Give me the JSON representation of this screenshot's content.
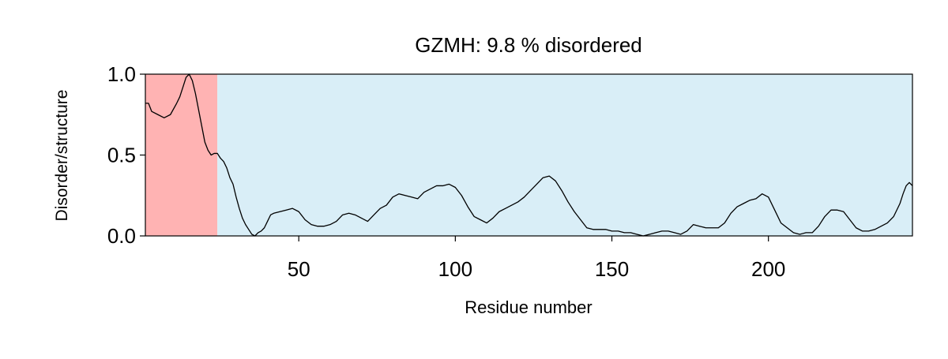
{
  "chart_data": {
    "type": "line",
    "title": "GZMH: 9.8 % disordered",
    "xlabel": "Residue number",
    "ylabel": "Disorder/structure",
    "xlim": [
      1,
      246
    ],
    "ylim": [
      0,
      1
    ],
    "x_ticks": [
      50,
      100,
      150,
      200
    ],
    "x_tick_labels": [
      "50",
      "100",
      "150",
      "200"
    ],
    "y_ticks": [
      0,
      0.5,
      1
    ],
    "y_tick_labels": [
      "0.0",
      "0.5",
      "1.0"
    ],
    "grid": false,
    "legend": "none",
    "regions": [
      {
        "kind": "disordered",
        "start": 1,
        "end": 24,
        "color": "#ffb3b3"
      },
      {
        "kind": "structured",
        "start": 24,
        "end": 246,
        "color": "#d9eef7"
      }
    ],
    "series": [
      {
        "color": "#000000",
        "points": [
          [
            1,
            0.82
          ],
          [
            2,
            0.82
          ],
          [
            3,
            0.77
          ],
          [
            5,
            0.75
          ],
          [
            7,
            0.73
          ],
          [
            9,
            0.75
          ],
          [
            11,
            0.82
          ],
          [
            12,
            0.86
          ],
          [
            13,
            0.92
          ],
          [
            14,
            0.98
          ],
          [
            15,
            1.0
          ],
          [
            16,
            0.96
          ],
          [
            17,
            0.88
          ],
          [
            18,
            0.78
          ],
          [
            19,
            0.68
          ],
          [
            20,
            0.58
          ],
          [
            21,
            0.53
          ],
          [
            22,
            0.5
          ],
          [
            23,
            0.51
          ],
          [
            24,
            0.51
          ],
          [
            25,
            0.48
          ],
          [
            26,
            0.46
          ],
          [
            27,
            0.42
          ],
          [
            28,
            0.36
          ],
          [
            29,
            0.32
          ],
          [
            30,
            0.24
          ],
          [
            31,
            0.17
          ],
          [
            32,
            0.11
          ],
          [
            33,
            0.07
          ],
          [
            34,
            0.04
          ],
          [
            35,
            0.01
          ],
          [
            36,
            0.0
          ],
          [
            37,
            0.02
          ],
          [
            38,
            0.03
          ],
          [
            39,
            0.05
          ],
          [
            40,
            0.09
          ],
          [
            41,
            0.13
          ],
          [
            42,
            0.14
          ],
          [
            44,
            0.15
          ],
          [
            46,
            0.16
          ],
          [
            48,
            0.17
          ],
          [
            50,
            0.15
          ],
          [
            52,
            0.1
          ],
          [
            54,
            0.07
          ],
          [
            56,
            0.06
          ],
          [
            58,
            0.06
          ],
          [
            60,
            0.07
          ],
          [
            62,
            0.09
          ],
          [
            64,
            0.13
          ],
          [
            66,
            0.14
          ],
          [
            68,
            0.13
          ],
          [
            70,
            0.11
          ],
          [
            72,
            0.09
          ],
          [
            74,
            0.13
          ],
          [
            76,
            0.17
          ],
          [
            78,
            0.19
          ],
          [
            80,
            0.24
          ],
          [
            82,
            0.26
          ],
          [
            84,
            0.25
          ],
          [
            86,
            0.24
          ],
          [
            88,
            0.23
          ],
          [
            90,
            0.27
          ],
          [
            92,
            0.29
          ],
          [
            94,
            0.31
          ],
          [
            96,
            0.31
          ],
          [
            98,
            0.32
          ],
          [
            100,
            0.3
          ],
          [
            102,
            0.25
          ],
          [
            104,
            0.18
          ],
          [
            106,
            0.12
          ],
          [
            108,
            0.1
          ],
          [
            110,
            0.08
          ],
          [
            112,
            0.11
          ],
          [
            114,
            0.15
          ],
          [
            116,
            0.17
          ],
          [
            118,
            0.19
          ],
          [
            120,
            0.21
          ],
          [
            122,
            0.24
          ],
          [
            124,
            0.28
          ],
          [
            126,
            0.32
          ],
          [
            128,
            0.36
          ],
          [
            130,
            0.37
          ],
          [
            132,
            0.34
          ],
          [
            134,
            0.28
          ],
          [
            136,
            0.21
          ],
          [
            138,
            0.15
          ],
          [
            140,
            0.1
          ],
          [
            142,
            0.05
          ],
          [
            144,
            0.04
          ],
          [
            146,
            0.04
          ],
          [
            148,
            0.04
          ],
          [
            150,
            0.03
          ],
          [
            152,
            0.03
          ],
          [
            154,
            0.02
          ],
          [
            156,
            0.02
          ],
          [
            158,
            0.01
          ],
          [
            160,
            0.0
          ],
          [
            162,
            0.01
          ],
          [
            164,
            0.02
          ],
          [
            166,
            0.03
          ],
          [
            168,
            0.03
          ],
          [
            170,
            0.02
          ],
          [
            172,
            0.01
          ],
          [
            174,
            0.03
          ],
          [
            176,
            0.07
          ],
          [
            178,
            0.06
          ],
          [
            180,
            0.05
          ],
          [
            182,
            0.05
          ],
          [
            184,
            0.05
          ],
          [
            186,
            0.08
          ],
          [
            188,
            0.14
          ],
          [
            190,
            0.18
          ],
          [
            192,
            0.2
          ],
          [
            194,
            0.22
          ],
          [
            196,
            0.23
          ],
          [
            198,
            0.26
          ],
          [
            200,
            0.24
          ],
          [
            202,
            0.16
          ],
          [
            204,
            0.08
          ],
          [
            206,
            0.05
          ],
          [
            208,
            0.02
          ],
          [
            210,
            0.01
          ],
          [
            212,
            0.02
          ],
          [
            214,
            0.02
          ],
          [
            216,
            0.06
          ],
          [
            218,
            0.12
          ],
          [
            220,
            0.16
          ],
          [
            222,
            0.16
          ],
          [
            224,
            0.15
          ],
          [
            226,
            0.1
          ],
          [
            228,
            0.05
          ],
          [
            230,
            0.03
          ],
          [
            232,
            0.03
          ],
          [
            234,
            0.04
          ],
          [
            236,
            0.06
          ],
          [
            238,
            0.08
          ],
          [
            240,
            0.12
          ],
          [
            242,
            0.2
          ],
          [
            243,
            0.26
          ],
          [
            244,
            0.31
          ],
          [
            245,
            0.33
          ],
          [
            246,
            0.31
          ]
        ]
      }
    ]
  }
}
